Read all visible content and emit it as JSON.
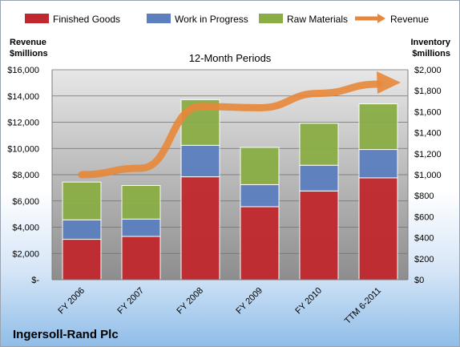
{
  "company": "Ingersoll-Rand Plc",
  "chart_data": {
    "type": "bar",
    "stacked": true,
    "subtitle": "12-Month Periods",
    "categories": [
      "FY 2006",
      "FY 2007",
      "FY 2008",
      "FY 2009",
      "FY 2010",
      "TTM 6-2011"
    ],
    "series": [
      {
        "name": "Finished Goods",
        "axis": "right",
        "color": "#c0282d",
        "values": [
          385,
          412,
          980,
          695,
          845,
          970
        ]
      },
      {
        "name": "Work in Progress",
        "axis": "right",
        "color": "#5b7fbf",
        "values": [
          185,
          165,
          300,
          210,
          245,
          270
        ]
      },
      {
        "name": "Raw Materials",
        "axis": "right",
        "color": "#8aad45",
        "values": [
          360,
          320,
          435,
          355,
          400,
          435
        ]
      },
      {
        "name": "Revenue",
        "axis": "left",
        "type": "line",
        "color": "#e8873a",
        "values": [
          8000,
          8500,
          13200,
          13100,
          14200,
          14900
        ]
      }
    ],
    "left_axis": {
      "label": "Revenue $millions",
      "lines": [
        "Revenue",
        "$millions"
      ],
      "min": 0,
      "max": 16000,
      "step": 2000,
      "ticks": [
        "$-",
        "$2,000",
        "$4,000",
        "$6,000",
        "$8,000",
        "$10,000",
        "$12,000",
        "$14,000",
        "$16,000"
      ]
    },
    "right_axis": {
      "label": "Inventory $millions",
      "lines": [
        "Inventory",
        "$millions"
      ],
      "min": 0,
      "max": 2000,
      "step": 200,
      "ticks": [
        "$0",
        "$200",
        "$400",
        "$600",
        "$800",
        "$1,000",
        "$1,200",
        "$1,400",
        "$1,600",
        "$1,800",
        "$2,000"
      ]
    },
    "legend_position": "top",
    "grid": true
  }
}
